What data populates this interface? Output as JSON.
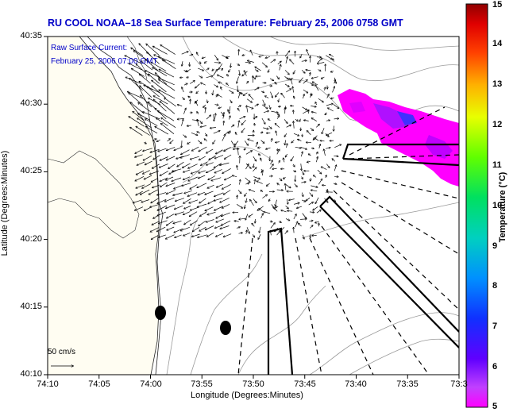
{
  "title": "RU COOL  NOAA–18  Sea Surface Temperature:  February 25, 2006 0758 GMT",
  "legend": {
    "line1": "Raw Surface Current:",
    "line2": "February 25, 2006 07:00 GMT"
  },
  "scale_label": "50 cm/s",
  "axes": {
    "xlabel": "Longitude (Degrees:Minutes)",
    "ylabel": "Latitude (Degrees:Minutes)",
    "xticks": [
      "74:10",
      "74:05",
      "74:00",
      "73:55",
      "73:50",
      "73:45",
      "73:40",
      "73:35",
      "73:3"
    ],
    "yticks": [
      "40:35",
      "40:30",
      "40:25",
      "40:20",
      "40:15",
      "40:10"
    ]
  },
  "colorbar": {
    "title": "Temperature (°C)",
    "ticks": [
      "15",
      "14",
      "13",
      "12",
      "11",
      "10",
      "9",
      "8",
      "7",
      "6",
      "5"
    ],
    "min": 5,
    "max": 15,
    "colors": [
      "#ff00ff",
      "#b000ff",
      "#2020ff",
      "#0080ff",
      "#00d0d0",
      "#00e080",
      "#40ff00",
      "#e0ff00",
      "#ffc000",
      "#ff6000",
      "#ff0000",
      "#a00000"
    ]
  },
  "sst_pixel_temperature_c": "5–6",
  "colors": {
    "title": "#0000c8",
    "land_fill": "#fffdf2",
    "sst_patch": "#ff00ff"
  },
  "markers": [
    "black-dot",
    "black-dot"
  ]
}
